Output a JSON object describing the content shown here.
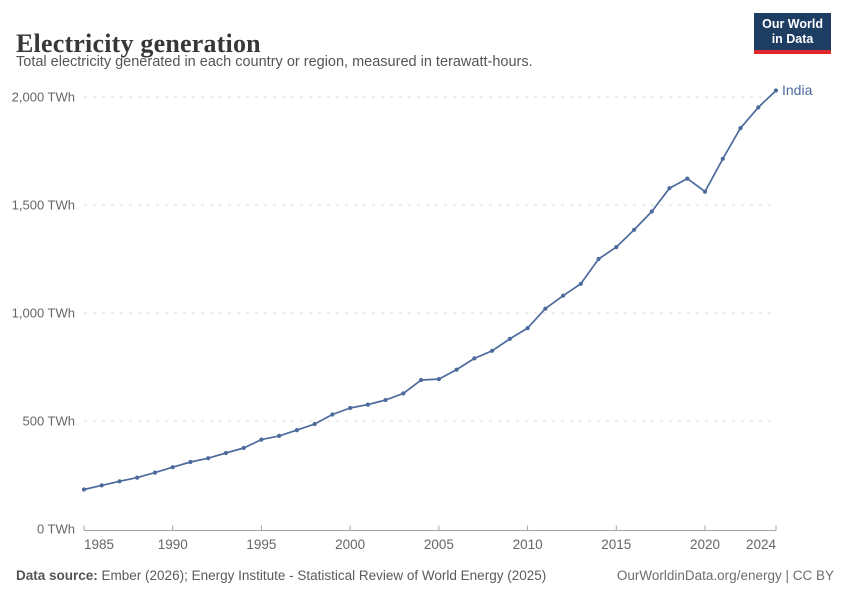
{
  "header": {
    "title": "Electricity generation",
    "subtitle": "Total electricity generated in each country or region, measured in terawatt-hours.",
    "logo": {
      "line1": "Our World",
      "line2": "in Data"
    }
  },
  "chart_data": {
    "type": "line",
    "title": "Electricity generation",
    "xlabel": "",
    "ylabel": "",
    "xlim": [
      1985,
      2024
    ],
    "ylim": [
      0,
      2000
    ],
    "grid": "horizontal-dashed",
    "legend_position": "end-of-line-label",
    "x_ticks": [
      1985,
      1990,
      1995,
      2000,
      2005,
      2010,
      2015,
      2020,
      2024
    ],
    "y_ticks": [
      0,
      500,
      1000,
      1500,
      2000
    ],
    "y_tick_labels": [
      "0 TWh",
      "500 TWh",
      "1,000 TWh",
      "1,500 TWh",
      "2,000 TWh"
    ],
    "series": [
      {
        "name": "India",
        "color": "#4c6a9c",
        "x": [
          1985,
          1986,
          1987,
          1988,
          1989,
          1990,
          1991,
          1992,
          1993,
          1994,
          1995,
          1996,
          1997,
          1998,
          1999,
          2000,
          2001,
          2002,
          2003,
          2004,
          2005,
          2006,
          2007,
          2008,
          2009,
          2010,
          2011,
          2012,
          2013,
          2014,
          2015,
          2016,
          2017,
          2018,
          2019,
          2020,
          2021,
          2022,
          2023,
          2024
        ],
        "values": [
          183,
          202,
          221,
          238,
          261,
          286,
          310,
          328,
          352,
          375,
          414,
          431,
          458,
          486,
          530,
          560,
          576,
          597,
          628,
          690,
          694,
          738,
          790,
          825,
          880,
          930,
          1020,
          1080,
          1135,
          1250,
          1305,
          1385,
          1470,
          1578,
          1622,
          1562,
          1714,
          1856,
          1952,
          2030
        ]
      }
    ]
  },
  "footer": {
    "data_source_label": "Data source:",
    "data_source_text": " Ember (2026); Energy Institute - Statistical Review of World Energy (2025)",
    "link": "OurWorldinData.org/energy | CC BY"
  },
  "colors": {
    "accent_line": "#4c6a9c",
    "grid": "#d9d9d9",
    "axis": "#a5a5a5",
    "tick_text": "#666666",
    "logo_bg": "#1d3d63",
    "logo_red": "#e0262d"
  }
}
